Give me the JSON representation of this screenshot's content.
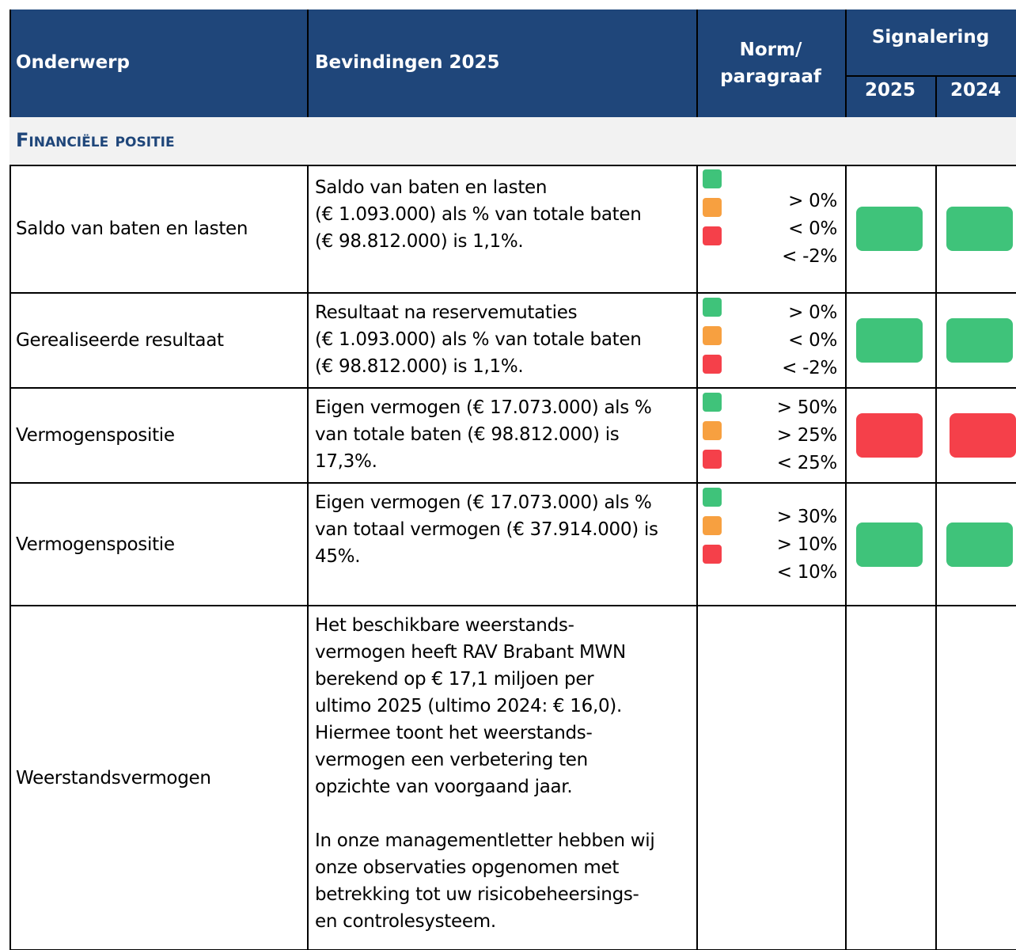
{
  "header": {
    "onderwerp": "Onderwerp",
    "bevindingen": "Bevindingen 2025",
    "norm": [
      "Norm/",
      "paragraaf"
    ],
    "signalering": "Signalering",
    "years": [
      "2025",
      "2024"
    ]
  },
  "section": "Financiële positie",
  "norm_colors": [
    "#3fc37a",
    "#f7a040",
    "#f5404a"
  ],
  "rows": [
    {
      "onderwerp": "Saldo van baten en lasten",
      "bevindingen": [
        [
          "Saldo van baten en lasten",
          "(€ 1.093.000) als % van totale baten",
          "(€ 98.812.000) is 1,1%."
        ]
      ],
      "norm": [
        "> 0%",
        "< 0%",
        "< -2%"
      ],
      "signal": [
        "#3fc37a",
        "#3fc37a"
      ]
    },
    {
      "onderwerp": "Gerealiseerde resultaat",
      "bevindingen": [
        [
          "Resultaat na reservemutaties",
          "(€ 1.093.000) als % van totale baten",
          "(€ 98.812.000) is 1,1%."
        ]
      ],
      "norm": [
        "> 0%",
        "< 0%",
        "< -2%"
      ],
      "signal": [
        "#3fc37a",
        "#3fc37a"
      ]
    },
    {
      "onderwerp": "Vermogenspositie",
      "bevindingen": [
        [
          "Eigen vermogen (€ 17.073.000) als %",
          "van totale baten (€ 98.812.000) is",
          "17,3%."
        ]
      ],
      "norm": [
        "> 50%",
        "> 25%",
        "< 25%"
      ],
      "signal": [
        "#f5404a",
        "#f5404a"
      ]
    },
    {
      "onderwerp": "Vermogenspositie",
      "bevindingen": [
        [
          "Eigen vermogen (€ 17.073.000) als %",
          "van totaal vermogen (€ 37.914.000) is",
          "45%."
        ]
      ],
      "norm": [
        "> 30%",
        "> 10%",
        "< 10%"
      ],
      "signal": [
        "#3fc37a",
        "#3fc37a"
      ]
    },
    {
      "onderwerp": "Weerstandsvermogen",
      "bevindingen": [
        [
          "Het beschikbare weerstands-",
          "vermogen heeft RAV Brabant MWN",
          "berekend op € 17,1 miljoen per",
          "ultimo 2025 (ultimo 2024: € 16,0).",
          "Hiermee toont het weerstands-",
          "vermogen een verbetering ten",
          "opzichte van voorgaand jaar."
        ],
        [
          "In onze managementletter hebben wij",
          "onze observaties opgenomen met",
          "betrekking tot uw risicobeheersings-",
          "en controlesysteem."
        ]
      ]
    }
  ]
}
